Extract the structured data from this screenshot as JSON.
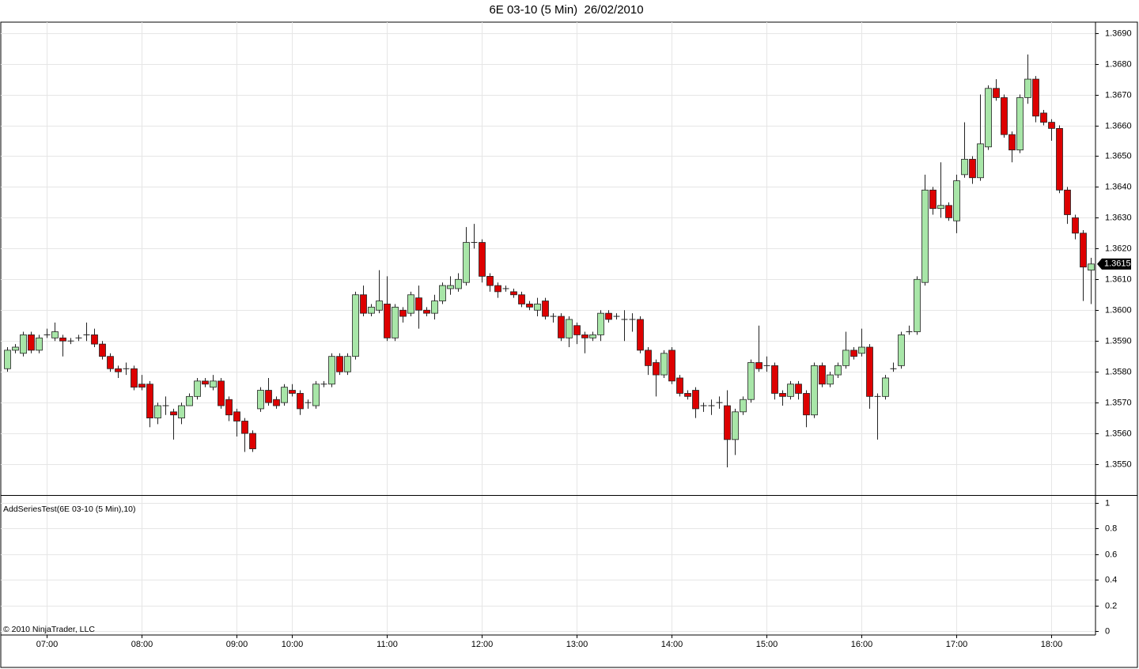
{
  "title": "6E 03-10 (5 Min)  26/02/2010",
  "footer": "© 2010 NinjaTrader, LLC",
  "chart_data": [
    {
      "type": "candlestick",
      "up_color": "#a8e6a8",
      "down_color": "#dd0000",
      "grid": true,
      "last_price": 1.3615,
      "ylim": [
        1.354,
        1.36935
      ],
      "yticks": [
        {
          "value": 1.355,
          "label": "1.3550"
        },
        {
          "value": 1.356,
          "label": "1.3560"
        },
        {
          "value": 1.357,
          "label": "1.3570"
        },
        {
          "value": 1.358,
          "label": "1.3580"
        },
        {
          "value": 1.359,
          "label": "1.3590"
        },
        {
          "value": 1.36,
          "label": "1.3600"
        },
        {
          "value": 1.361,
          "label": "1.3610"
        },
        {
          "value": 1.362,
          "label": "1.3620"
        },
        {
          "value": 1.363,
          "label": "1.3630"
        },
        {
          "value": 1.364,
          "label": "1.3640"
        },
        {
          "value": 1.365,
          "label": "1.3650"
        },
        {
          "value": 1.366,
          "label": "1.3660"
        },
        {
          "value": 1.367,
          "label": "1.3670"
        },
        {
          "value": 1.368,
          "label": "1.3680"
        },
        {
          "value": 1.369,
          "label": "1.3690"
        }
      ],
      "categories": [
        null,
        null,
        null,
        null,
        null,
        "07:00",
        null,
        null,
        null,
        null,
        null,
        null,
        null,
        null,
        null,
        null,
        null,
        "08:00",
        null,
        null,
        null,
        null,
        null,
        null,
        null,
        null,
        null,
        null,
        null,
        "09:00",
        null,
        null,
        null,
        null,
        null,
        null,
        "10:00",
        null,
        null,
        null,
        null,
        null,
        null,
        null,
        null,
        null,
        null,
        null,
        "11:00",
        null,
        null,
        null,
        null,
        null,
        null,
        null,
        null,
        null,
        null,
        null,
        "12:00",
        null,
        null,
        null,
        null,
        null,
        null,
        null,
        null,
        null,
        null,
        null,
        "13:00",
        null,
        null,
        null,
        null,
        null,
        null,
        null,
        null,
        null,
        null,
        null,
        "14:00",
        null,
        null,
        null,
        null,
        null,
        null,
        null,
        null,
        null,
        null,
        null,
        "15:00",
        null,
        null,
        null,
        null,
        null,
        null,
        null,
        null,
        null,
        null,
        null,
        "16:00",
        null,
        null,
        null,
        null,
        null,
        null,
        null,
        null,
        null,
        null,
        null,
        "17:00",
        null,
        null,
        null,
        null,
        null,
        null,
        null,
        null,
        null,
        null,
        null,
        "18:00",
        null,
        null,
        null,
        null,
        null
      ],
      "open": [
        1.3581,
        1.3587,
        1.3586,
        1.3592,
        1.3587,
        1.3592,
        1.3591,
        1.3591,
        1.359,
        1.3591,
        1.3592,
        1.3592,
        1.3589,
        1.3585,
        1.3581,
        1.3581,
        1.3581,
        1.3576,
        1.3576,
        1.3565,
        1.3569,
        1.3567,
        1.3565,
        1.3569,
        1.3572,
        1.3577,
        1.3575,
        1.3577,
        1.3571,
        1.3567,
        1.3564,
        1.356,
        1.3568,
        1.3574,
        1.3571,
        1.357,
        1.3574,
        1.3573,
        1.357,
        1.3569,
        1.3576,
        1.3576,
        1.3585,
        1.358,
        1.3585,
        1.3605,
        1.3599,
        1.36,
        1.3602,
        1.3591,
        1.36,
        1.3599,
        1.3604,
        1.36,
        1.3599,
        1.3603,
        1.3607,
        1.3607,
        1.3609,
        1.3622,
        1.3622,
        1.3611,
        1.3608,
        1.3607,
        1.3606,
        1.3605,
        1.3602,
        1.36,
        1.3603,
        1.3598,
        1.3598,
        1.3591,
        1.3595,
        1.3592,
        1.3591,
        1.3592,
        1.3599,
        1.3598,
        1.3597,
        1.3597,
        1.3597,
        1.3587,
        1.3583,
        1.3579,
        1.3587,
        1.3578,
        1.3573,
        1.3574,
        1.3569,
        1.3569,
        1.357,
        1.3569,
        1.3558,
        1.3567,
        1.3571,
        1.3583,
        1.3582,
        1.3582,
        1.3573,
        1.3572,
        1.3576,
        1.3573,
        1.3566,
        1.3582,
        1.3576,
        1.3579,
        1.3582,
        1.3587,
        1.3586,
        1.3588,
        1.3572,
        1.3572,
        1.3581,
        1.3582,
        1.3593,
        1.3593,
        1.3609,
        1.3639,
        1.3633,
        1.3634,
        1.3629,
        1.3644,
        1.3649,
        1.3643,
        1.3653,
        1.3672,
        1.3669,
        1.3657,
        1.3652,
        1.3669,
        1.3675,
        1.3664,
        1.3661,
        1.3659,
        1.3639,
        1.363,
        1.3625,
        1.3613
      ],
      "high": [
        1.3588,
        1.3589,
        1.3593,
        1.3593,
        1.3592,
        1.3594,
        1.3596,
        1.3592,
        1.3591,
        1.3592,
        1.3596,
        1.3594,
        1.359,
        1.3586,
        1.3582,
        1.3583,
        1.3582,
        1.3579,
        1.3577,
        1.357,
        1.3572,
        1.3568,
        1.357,
        1.3573,
        1.3578,
        1.3578,
        1.3579,
        1.3578,
        1.3572,
        1.3568,
        1.3565,
        1.3561,
        1.3575,
        1.3578,
        1.3572,
        1.3576,
        1.3576,
        1.3574,
        1.3571,
        1.3577,
        1.3577,
        1.3586,
        1.3586,
        1.3586,
        1.3606,
        1.3608,
        1.3602,
        1.3613,
        1.3611,
        1.3602,
        1.3601,
        1.3606,
        1.3608,
        1.3601,
        1.3605,
        1.3609,
        1.3611,
        1.3612,
        1.3627,
        1.3628,
        1.3623,
        1.3612,
        1.3609,
        1.3608,
        1.3607,
        1.3606,
        1.3603,
        1.3604,
        1.3604,
        1.3599,
        1.3599,
        1.3598,
        1.3596,
        1.3593,
        1.3593,
        1.36,
        1.36,
        1.3599,
        1.36,
        1.3599,
        1.3598,
        1.3588,
        1.3584,
        1.3587,
        1.3588,
        1.3579,
        1.3574,
        1.3575,
        1.357,
        1.3571,
        1.3572,
        1.3574,
        1.3568,
        1.3572,
        1.3584,
        1.3595,
        1.3585,
        1.3583,
        1.3574,
        1.3577,
        1.3577,
        1.3574,
        1.3583,
        1.3583,
        1.358,
        1.3583,
        1.3593,
        1.3588,
        1.3594,
        1.3589,
        1.3573,
        1.3579,
        1.3583,
        1.3593,
        1.3595,
        1.3611,
        1.3644,
        1.364,
        1.3648,
        1.3635,
        1.3644,
        1.3661,
        1.365,
        1.367,
        1.3673,
        1.3675,
        1.367,
        1.3658,
        1.367,
        1.3683,
        1.3676,
        1.3665,
        1.3662,
        1.366,
        1.364,
        1.3631,
        1.3626,
        1.3617
      ],
      "low": [
        1.358,
        1.3586,
        1.3585,
        1.3586,
        1.3586,
        1.3591,
        1.359,
        1.3585,
        1.3589,
        1.359,
        1.359,
        1.3588,
        1.3584,
        1.358,
        1.3578,
        1.3579,
        1.3574,
        1.3574,
        1.3562,
        1.3563,
        1.3566,
        1.3558,
        1.3563,
        1.357,
        1.3571,
        1.3575,
        1.3574,
        1.3568,
        1.3564,
        1.3559,
        1.3554,
        1.3554,
        1.3567,
        1.3569,
        1.3568,
        1.3569,
        1.3572,
        1.3566,
        1.3568,
        1.3568,
        1.3575,
        1.3575,
        1.3579,
        1.3579,
        1.3584,
        1.3598,
        1.3598,
        1.3599,
        1.359,
        1.359,
        1.3596,
        1.3598,
        1.3594,
        1.3598,
        1.3597,
        1.3602,
        1.3605,
        1.3606,
        1.3608,
        1.362,
        1.3609,
        1.3606,
        1.3604,
        1.3606,
        1.3604,
        1.3601,
        1.36,
        1.3598,
        1.3597,
        1.3596,
        1.359,
        1.3588,
        1.3589,
        1.3586,
        1.359,
        1.359,
        1.3596,
        1.3597,
        1.359,
        1.3593,
        1.3586,
        1.3579,
        1.3572,
        1.3578,
        1.3576,
        1.3572,
        1.3571,
        1.3565,
        1.3567,
        1.3566,
        1.3568,
        1.3549,
        1.3553,
        1.3566,
        1.357,
        1.358,
        1.358,
        1.3571,
        1.3569,
        1.3571,
        1.3571,
        1.3562,
        1.3565,
        1.3575,
        1.3575,
        1.3578,
        1.3581,
        1.3584,
        1.3585,
        1.3568,
        1.3558,
        1.3571,
        1.358,
        1.3581,
        1.3592,
        1.3592,
        1.3608,
        1.3631,
        1.363,
        1.3629,
        1.3625,
        1.3643,
        1.3641,
        1.3642,
        1.3652,
        1.3668,
        1.3656,
        1.3648,
        1.3651,
        1.3667,
        1.3661,
        1.366,
        1.3655,
        1.3638,
        1.3628,
        1.3623,
        1.3603,
        1.3602
      ],
      "close": [
        1.3587,
        1.3588,
        1.3592,
        1.3587,
        1.3591,
        1.3592,
        1.3593,
        1.359,
        1.359,
        1.3591,
        1.3592,
        1.3589,
        1.3585,
        1.3581,
        1.358,
        1.3581,
        1.3575,
        1.3575,
        1.3565,
        1.3569,
        1.3569,
        1.3566,
        1.3569,
        1.3572,
        1.3577,
        1.3576,
        1.3577,
        1.3569,
        1.3566,
        1.3564,
        1.356,
        1.3555,
        1.3574,
        1.357,
        1.3569,
        1.3575,
        1.3573,
        1.3568,
        1.357,
        1.3576,
        1.3576,
        1.3585,
        1.358,
        1.3585,
        1.3605,
        1.3599,
        1.3601,
        1.3603,
        1.3591,
        1.3601,
        1.3598,
        1.3605,
        1.36,
        1.3599,
        1.3603,
        1.3608,
        1.3608,
        1.361,
        1.3622,
        1.3622,
        1.3611,
        1.3608,
        1.3606,
        1.3607,
        1.3605,
        1.3602,
        1.3601,
        1.3602,
        1.3598,
        1.3598,
        1.3591,
        1.3597,
        1.3592,
        1.3591,
        1.3592,
        1.3599,
        1.3597,
        1.3598,
        1.3597,
        1.3597,
        1.3587,
        1.3582,
        1.3579,
        1.3586,
        1.3577,
        1.3573,
        1.3572,
        1.3568,
        1.3569,
        1.3569,
        1.357,
        1.3558,
        1.3567,
        1.3571,
        1.3583,
        1.3581,
        1.3582,
        1.3573,
        1.3572,
        1.3576,
        1.3573,
        1.3566,
        1.3582,
        1.3576,
        1.3579,
        1.3582,
        1.3587,
        1.3585,
        1.3588,
        1.3572,
        1.3572,
        1.3578,
        1.3581,
        1.3592,
        1.3593,
        1.361,
        1.3639,
        1.3633,
        1.3634,
        1.363,
        1.3642,
        1.3649,
        1.3643,
        1.3654,
        1.3672,
        1.3669,
        1.3657,
        1.3652,
        1.3669,
        1.3675,
        1.3663,
        1.3661,
        1.3659,
        1.3639,
        1.3631,
        1.3625,
        1.3614,
        1.3615
      ]
    },
    {
      "type": "indicator",
      "label": "AddSeriesTest(6E 03-10 (5 Min),10)",
      "ylim": [
        -0.03,
        1.055
      ],
      "yticks": [
        0,
        0.2,
        0.4,
        0.6,
        0.8,
        1
      ]
    }
  ]
}
